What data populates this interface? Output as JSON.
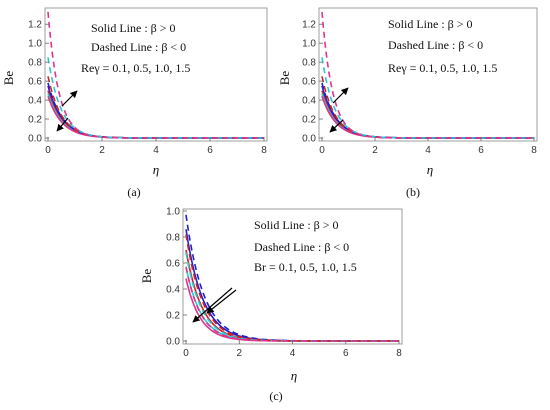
{
  "chart_data": [
    {
      "type": "line",
      "caption": "(a)",
      "xlabel": "η",
      "ylabel": "Be",
      "xlim": [
        0,
        8
      ],
      "ylim": [
        0,
        1.35
      ],
      "xticks": [
        "0",
        "2",
        "4",
        "6",
        "8"
      ],
      "yticks": [
        "0.0",
        "0.2",
        "0.4",
        "0.6",
        "0.8",
        "1.0",
        "1.2"
      ],
      "grid": false,
      "legend_lines": [
        "Solid Line : β > 0",
        "Dashed Line : β < 0",
        "Reγ = 0.1, 0.5, 1.0, 1.5"
      ],
      "series": [
        {
          "color": "#1f1fd0",
          "style": "solid",
          "y0": 0.55,
          "k": 1.9
        },
        {
          "color": "#d01f1f",
          "style": "solid",
          "y0": 0.5,
          "k": 1.9
        },
        {
          "color": "#27c9d6",
          "style": "solid",
          "y0": 0.47,
          "k": 1.9
        },
        {
          "color": "#e0338a",
          "style": "solid",
          "y0": 0.44,
          "k": 1.9
        },
        {
          "color": "#1f1fd0",
          "style": "dashed",
          "y0": 0.58,
          "k": 1.9
        },
        {
          "color": "#d01f1f",
          "style": "dashed",
          "y0": 0.65,
          "k": 2.0
        },
        {
          "color": "#27c9d6",
          "style": "dashed",
          "y0": 0.85,
          "k": 2.1
        },
        {
          "color": "#e0338a",
          "style": "dashed",
          "y0": 1.33,
          "k": 2.5
        }
      ]
    },
    {
      "type": "line",
      "caption": "(b)",
      "xlabel": "η",
      "ylabel": "Be",
      "xlim": [
        0,
        8
      ],
      "ylim": [
        0,
        1.35
      ],
      "xticks": [
        "0",
        "2",
        "4",
        "6",
        "8"
      ],
      "yticks": [
        "0.0",
        "0.2",
        "0.4",
        "0.6",
        "0.8",
        "1.0",
        "1.2"
      ],
      "grid": false,
      "legend_lines": [
        "Solid Line : β > 0",
        "Dashed Line : β < 0",
        "Reγ = 0.1, 0.5, 1.0, 1.5"
      ],
      "series": [
        {
          "color": "#1f1fd0",
          "style": "solid",
          "y0": 0.55,
          "k": 1.9
        },
        {
          "color": "#d01f1f",
          "style": "solid",
          "y0": 0.5,
          "k": 1.9
        },
        {
          "color": "#27c9d6",
          "style": "solid",
          "y0": 0.47,
          "k": 1.9
        },
        {
          "color": "#e0338a",
          "style": "solid",
          "y0": 0.44,
          "k": 1.9
        },
        {
          "color": "#1f1fd0",
          "style": "dashed",
          "y0": 0.58,
          "k": 1.9
        },
        {
          "color": "#d01f1f",
          "style": "dashed",
          "y0": 0.65,
          "k": 2.0
        },
        {
          "color": "#27c9d6",
          "style": "dashed",
          "y0": 0.85,
          "k": 2.1
        },
        {
          "color": "#e0338a",
          "style": "dashed",
          "y0": 1.33,
          "k": 2.5
        }
      ]
    },
    {
      "type": "line",
      "caption": "(c)",
      "xlabel": "η",
      "ylabel": "Be",
      "xlim": [
        0,
        8
      ],
      "ylim": [
        0,
        1.0
      ],
      "xticks": [
        "0",
        "2",
        "4",
        "6",
        "8"
      ],
      "yticks": [
        "0.0",
        "0.2",
        "0.4",
        "0.6",
        "0.8",
        "1.0"
      ],
      "grid": false,
      "legend_lines": [
        "Solid Line : β > 0",
        "Dashed Line : β < 0",
        "Br = 0.1, 0.5, 1.0, 1.5"
      ],
      "series": [
        {
          "color": "#1f1fd0",
          "style": "solid",
          "y0": 0.86,
          "k": 1.55
        },
        {
          "color": "#d01f1f",
          "style": "solid",
          "y0": 0.7,
          "k": 1.65
        },
        {
          "color": "#27c9d6",
          "style": "solid",
          "y0": 0.57,
          "k": 1.75
        },
        {
          "color": "#e0338a",
          "style": "solid",
          "y0": 0.48,
          "k": 1.85
        },
        {
          "color": "#1f1fd0",
          "style": "dashed",
          "y0": 0.97,
          "k": 1.5
        },
        {
          "color": "#d01f1f",
          "style": "dashed",
          "y0": 0.82,
          "k": 1.6
        },
        {
          "color": "#27c9d6",
          "style": "dashed",
          "y0": 0.68,
          "k": 1.7
        },
        {
          "color": "#e0338a",
          "style": "dashed",
          "y0": 0.57,
          "k": 1.8
        }
      ]
    }
  ]
}
